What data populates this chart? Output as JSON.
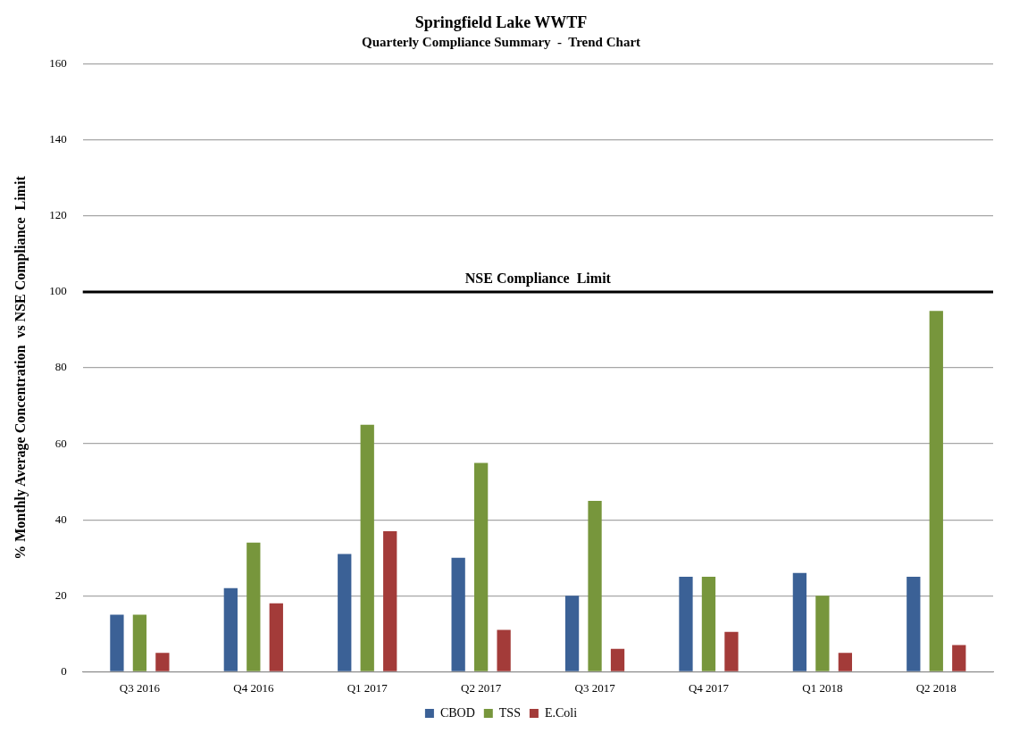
{
  "chart_data": {
    "type": "bar",
    "title": "Springfield Lake WWTF",
    "subtitle": "Quarterly Compliance Summary  -  Trend Chart",
    "ylabel": "% Monthly Average Concentration  vs NSE Compliance  Limit",
    "categories": [
      "Q3 2016",
      "Q4 2016",
      "Q1 2017",
      "Q2 2017",
      "Q3 2017",
      "Q4 2017",
      "Q1 2018",
      "Q2 2018"
    ],
    "series": [
      {
        "name": "CBOD",
        "color": "#3b6196",
        "values": [
          15,
          22,
          31,
          30,
          20,
          25,
          26,
          25
        ]
      },
      {
        "name": "TSS",
        "color": "#77963c",
        "values": [
          15,
          34,
          65,
          55,
          45,
          25,
          20,
          95
        ]
      },
      {
        "name": "E.Coli",
        "color": "#a33b39",
        "values": [
          5,
          18,
          37,
          11,
          6,
          10.5,
          5,
          7
        ]
      }
    ],
    "ylim": [
      0,
      160
    ],
    "yticks": [
      0,
      20,
      40,
      60,
      80,
      100,
      120,
      140,
      160
    ],
    "grid": "y",
    "legend": "bottom",
    "ref_lines": [
      {
        "axis": "y",
        "value": 100,
        "label": "NSE Compliance  Limit",
        "color": "#000000"
      }
    ]
  }
}
